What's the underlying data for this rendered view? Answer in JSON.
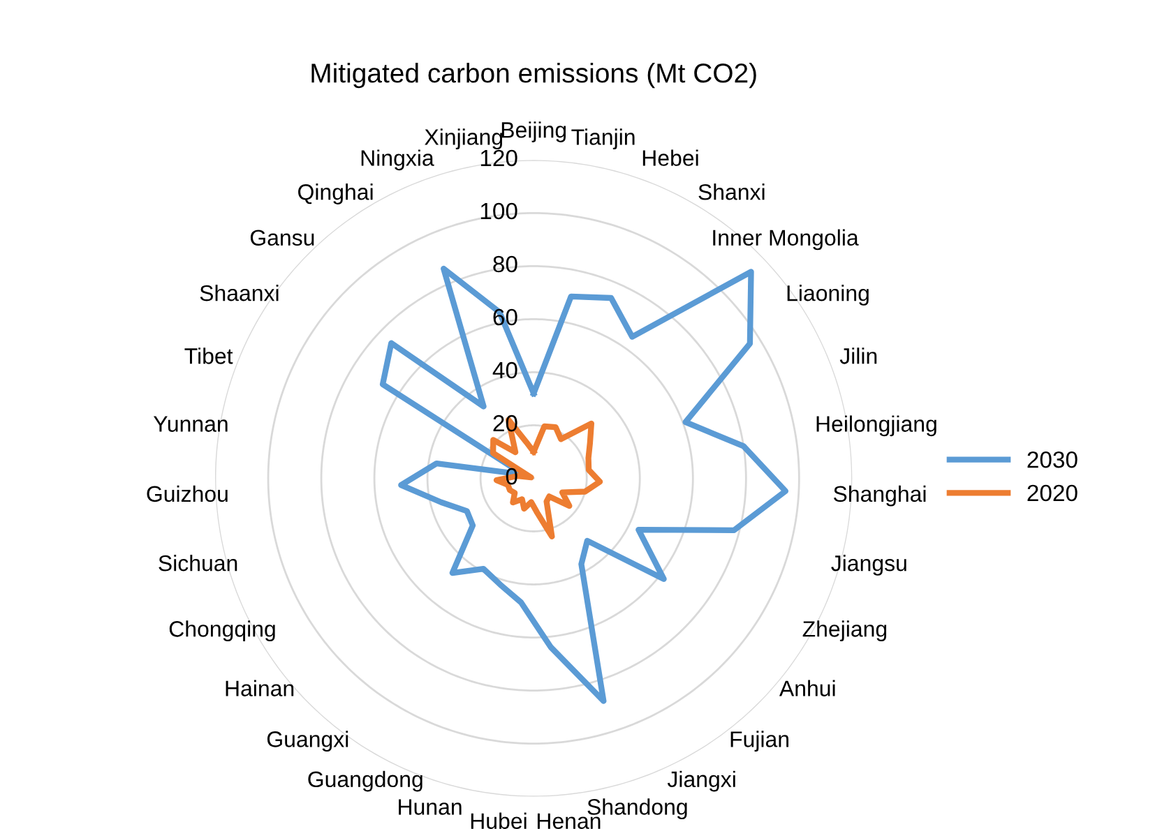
{
  "chart_data": {
    "type": "radar",
    "title": "Mitigated carbon emissions (Mt CO2)",
    "categories": [
      "Beijing",
      "Tianjin",
      "Hebei",
      "Shanxi",
      "Inner Mongolia",
      "Liaoning",
      "Jilin",
      "Heilongjiang",
      "Shanghai",
      "Jiangsu",
      "Zhejiang",
      "Anhui",
      "Fujian",
      "Jiangxi",
      "Shandong",
      "Henan",
      "Hubei",
      "Hunan",
      "Guangdong",
      "Guangxi",
      "Hainan",
      "Chongqing",
      "Sichuan",
      "Guizhou",
      "Yunnan",
      "Tibet",
      "Shaanxi",
      "Gansu",
      "Qinghai",
      "Ningxia",
      "Xinjiang"
    ],
    "series": [
      {
        "name": "2030",
        "color": "#5b9bd5",
        "values": [
          32,
          70,
          74,
          65,
          113,
          96,
          61,
          80,
          95,
          78,
          44,
          62,
          31,
          37,
          88,
          64,
          47,
          42,
          39,
          47,
          29,
          28,
          36,
          50,
          37,
          4,
          67,
          74,
          33,
          86,
          64
        ]
      },
      {
        "name": "2020",
        "color": "#ed7d31",
        "values": [
          10,
          20,
          21,
          18,
          30,
          25,
          22,
          21,
          25,
          20,
          12,
          17,
          9,
          10,
          23,
          13,
          9,
          12,
          9,
          12,
          9,
          10,
          10,
          14,
          6,
          1,
          18,
          21,
          12,
          24,
          14
        ]
      }
    ],
    "ylim": [
      0,
      120
    ],
    "yticks": [
      0,
      20,
      40,
      60,
      80,
      100,
      120
    ],
    "grid": "y",
    "legend": "right",
    "marker": "none",
    "line_style": "solid"
  }
}
